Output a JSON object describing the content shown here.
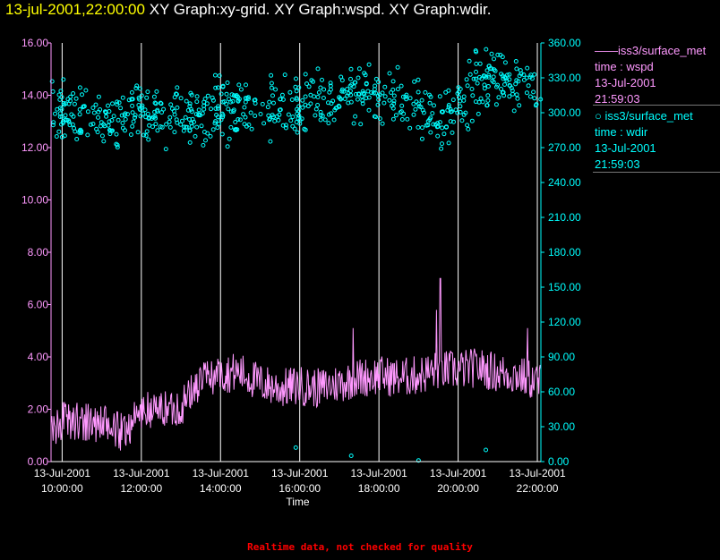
{
  "title": {
    "timestamp": "13-jul-2001,22:00:00",
    "graphs": "XY Graph:xy-grid.  XY Graph:wspd.  XY Graph:wdir."
  },
  "legend": {
    "wspd": {
      "marker": "——",
      "source": "iss3/surface_met",
      "line1": "time : wspd",
      "line2": "13-Jul-2001",
      "line3": "21:59:03"
    },
    "wdir": {
      "marker": "○",
      "source": "iss3/surface_met",
      "line1": "time : wdir",
      "line2": "13-Jul-2001",
      "line3": "21:59:03"
    }
  },
  "footer": {
    "note": "Realtime data, not checked for quality"
  },
  "chart_data": {
    "type": "line+scatter",
    "xlabel": "Time",
    "x_range_hours": [
      9.72,
      22.09
    ],
    "x_ticks": [
      {
        "hour": 10,
        "date": "13-Jul-2001",
        "time": "10:00:00"
      },
      {
        "hour": 12,
        "date": "13-Jul-2001",
        "time": "12:00:00"
      },
      {
        "hour": 14,
        "date": "13-Jul-2001",
        "time": "14:00:00"
      },
      {
        "hour": 16,
        "date": "13-Jul-2001",
        "time": "16:00:00"
      },
      {
        "hour": 18,
        "date": "13-Jul-2001",
        "time": "18:00:00"
      },
      {
        "hour": 20,
        "date": "13-Jul-2001",
        "time": "20:00:00"
      },
      {
        "hour": 22,
        "date": "13-Jul-2001",
        "time": "22:00:00"
      }
    ],
    "left_axis": {
      "series": "wspd",
      "range": [
        0,
        16
      ],
      "ticks": [
        "0.00",
        "2.00",
        "4.00",
        "6.00",
        "8.00",
        "10.00",
        "12.00",
        "14.00",
        "16.00"
      ]
    },
    "right_axis": {
      "series": "wdir",
      "range": [
        0,
        360
      ],
      "ticks": [
        "0.00",
        "30.00",
        "60.00",
        "90.00",
        "120.00",
        "150.00",
        "180.00",
        "210.00",
        "240.00",
        "270.00",
        "300.00",
        "330.00",
        "360.00"
      ]
    },
    "colors": {
      "wspd": "#ff99ff",
      "wdir": "#00ffff",
      "axis_left": "#ff99ff",
      "axis_right": "#00ffff",
      "grid": "#ffffff",
      "labels": "#ffffff"
    },
    "wspd_profile": {
      "hours": [
        9.72,
        10.0,
        10.5,
        11.0,
        11.5,
        12.0,
        12.5,
        13.0,
        13.5,
        14.0,
        14.5,
        15.0,
        15.5,
        16.0,
        16.5,
        17.0,
        17.5,
        18.0,
        18.5,
        19.0,
        19.5,
        20.0,
        20.5,
        21.0,
        21.5,
        22.09
      ],
      "mean": [
        1.3,
        1.5,
        1.6,
        1.4,
        1.1,
        1.9,
        2.0,
        2.1,
        3.1,
        3.4,
        3.4,
        3.0,
        2.8,
        2.9,
        2.8,
        3.0,
        3.2,
        3.3,
        3.2,
        3.3,
        3.5,
        3.5,
        3.6,
        3.4,
        3.3,
        3.0
      ],
      "noise": 0.55,
      "samples": 700
    },
    "wspd_peaks": [
      {
        "hour": 19.55,
        "value": 7.0
      },
      {
        "hour": 19.45,
        "value": 5.8
      },
      {
        "hour": 17.35,
        "value": 5.1
      },
      {
        "hour": 21.75,
        "value": 5.1
      }
    ],
    "wdir_profile": {
      "hours": [
        9.72,
        10.0,
        11.0,
        12.0,
        13.0,
        14.0,
        15.0,
        16.0,
        17.0,
        18.0,
        19.0,
        19.5,
        20.0,
        20.5,
        21.0,
        22.09
      ],
      "mean": [
        306,
        303,
        293,
        300,
        298,
        303,
        300,
        303,
        315,
        318,
        310,
        290,
        310,
        328,
        323,
        318
      ],
      "spread": 16,
      "samples": 680
    },
    "wdir_outliers": [
      {
        "hour": 15.9,
        "value": 12
      },
      {
        "hour": 17.3,
        "value": 5
      },
      {
        "hour": 19.0,
        "value": 1
      },
      {
        "hour": 20.7,
        "value": 10
      }
    ]
  }
}
